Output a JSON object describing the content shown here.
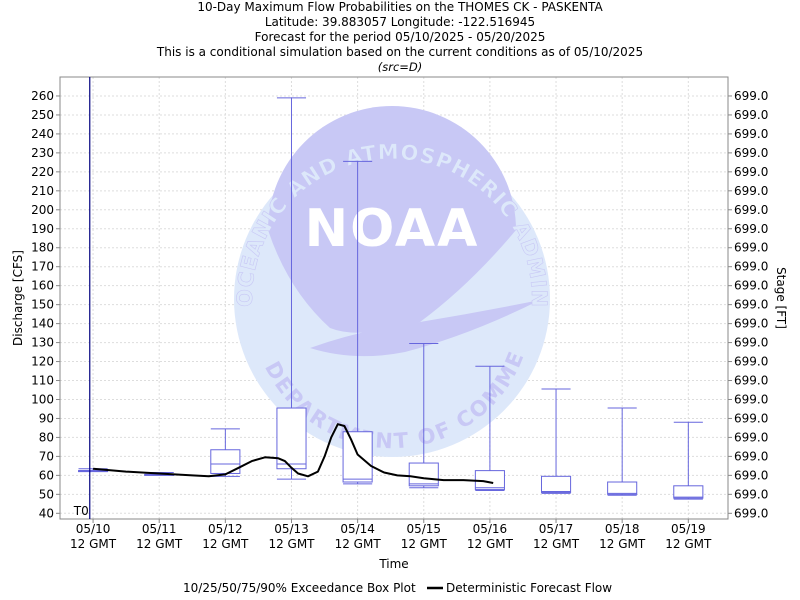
{
  "titles": {
    "line1": "10-Day Maximum Flow Probabilities on the THOMES CK - PASKENTA",
    "line2": "Latitude: 39.883057 Longitude: -122.516945",
    "line3": "Forecast for the period 05/10/2025 - 05/20/2025",
    "line4": "This is a conditional simulation based on the current conditions as of 05/10/2025",
    "line5": "(src=D)"
  },
  "watermark": {
    "logo_text": "NOAA",
    "ring_text_top": "NATIONAL OCEANIC AND ATMOSPHERIC ADMINISTRATION",
    "ring_text_bottom": "U.S. DEPARTMENT OF COMMERCE"
  },
  "colors": {
    "box": "#6666dd",
    "box_fill": "#ffffff",
    "line": "#000000",
    "t0": "#000080",
    "grid": "#dddddd",
    "watermark_dark": "#c8c8f5",
    "watermark_light": "#dde8fa"
  },
  "chart_data": {
    "type": "box",
    "ylabel": "Discharge [CFS]",
    "y2label": "Stage [FT]",
    "xlabel": "Time",
    "ylim": [
      37,
      270
    ],
    "xlim": [
      -0.5,
      9.6
    ],
    "yticks": [
      40,
      50,
      60,
      70,
      80,
      90,
      100,
      110,
      120,
      130,
      140,
      150,
      160,
      170,
      180,
      190,
      200,
      210,
      220,
      230,
      240,
      250,
      260
    ],
    "y2tick_label": "699.0",
    "xticks": [
      {
        "x": 0,
        "date": "05/10",
        "sub": "12 GMT"
      },
      {
        "x": 1,
        "date": "05/11",
        "sub": "12 GMT"
      },
      {
        "x": 2,
        "date": "05/12",
        "sub": "12 GMT"
      },
      {
        "x": 3,
        "date": "05/13",
        "sub": "12 GMT"
      },
      {
        "x": 4,
        "date": "05/14",
        "sub": "12 GMT"
      },
      {
        "x": 5,
        "date": "05/15",
        "sub": "12 GMT"
      },
      {
        "x": 6,
        "date": "05/16",
        "sub": "12 GMT"
      },
      {
        "x": 7,
        "date": "05/17",
        "sub": "12 GMT"
      },
      {
        "x": 8,
        "date": "05/18",
        "sub": "12 GMT"
      },
      {
        "x": 9,
        "date": "05/19",
        "sub": "12 GMT"
      }
    ],
    "t0": {
      "x": -0.05,
      "label": "T0"
    },
    "boxes": [
      {
        "x": 0.0,
        "p10": 62.5,
        "p25": 62.5,
        "p50": 62.5,
        "p75": 62.5,
        "p90": 63.5
      },
      {
        "x": 1.0,
        "p10": 60.5,
        "p25": 60.5,
        "p50": 60.5,
        "p75": 60.5,
        "p90": 61.5
      },
      {
        "x": 2.0,
        "p10": 59.5,
        "p25": 61.0,
        "p50": 66.0,
        "p75": 73.5,
        "p90": 84.5
      },
      {
        "x": 3.0,
        "p10": 58.0,
        "p25": 63.5,
        "p50": 66.0,
        "p75": 95.5,
        "p90": 259.0
      },
      {
        "x": 4.0,
        "p10": 55.5,
        "p25": 56.5,
        "p50": 58.0,
        "p75": 83.0,
        "p90": 225.5
      },
      {
        "x": 5.0,
        "p10": 53.5,
        "p25": 54.5,
        "p50": 55.5,
        "p75": 66.5,
        "p90": 129.5
      },
      {
        "x": 6.0,
        "p10": 52.0,
        "p25": 52.5,
        "p50": 53.5,
        "p75": 62.5,
        "p90": 117.5
      },
      {
        "x": 7.0,
        "p10": 50.5,
        "p25": 51.0,
        "p50": 51.5,
        "p75": 59.5,
        "p90": 105.5
      },
      {
        "x": 8.0,
        "p10": 49.5,
        "p25": 50.0,
        "p50": 50.5,
        "p75": 56.5,
        "p90": 95.5
      },
      {
        "x": 9.0,
        "p10": 47.5,
        "p25": 48.0,
        "p50": 48.5,
        "p75": 54.5,
        "p90": 88.0
      }
    ],
    "deterministic": {
      "x": [
        0.0,
        0.5,
        1.0,
        1.5,
        1.75,
        2.0,
        2.2,
        2.4,
        2.6,
        2.8,
        2.9,
        3.0,
        3.1,
        3.25,
        3.4,
        3.5,
        3.6,
        3.7,
        3.8,
        3.9,
        4.0,
        4.2,
        4.4,
        4.6,
        4.8,
        5.0,
        5.3,
        5.6,
        5.9,
        6.05
      ],
      "y": [
        63.5,
        62,
        61,
        60,
        59.5,
        60.5,
        64,
        67.5,
        69.5,
        69,
        67.5,
        64,
        61,
        59.5,
        62,
        70,
        80,
        87,
        86,
        79,
        71,
        65,
        61.5,
        60,
        59.5,
        58.5,
        57.5,
        57.5,
        57,
        56
      ]
    },
    "legend": [
      "10/25/50/75/90% Exceedance Box Plot",
      "Deterministic Forecast Flow"
    ]
  }
}
